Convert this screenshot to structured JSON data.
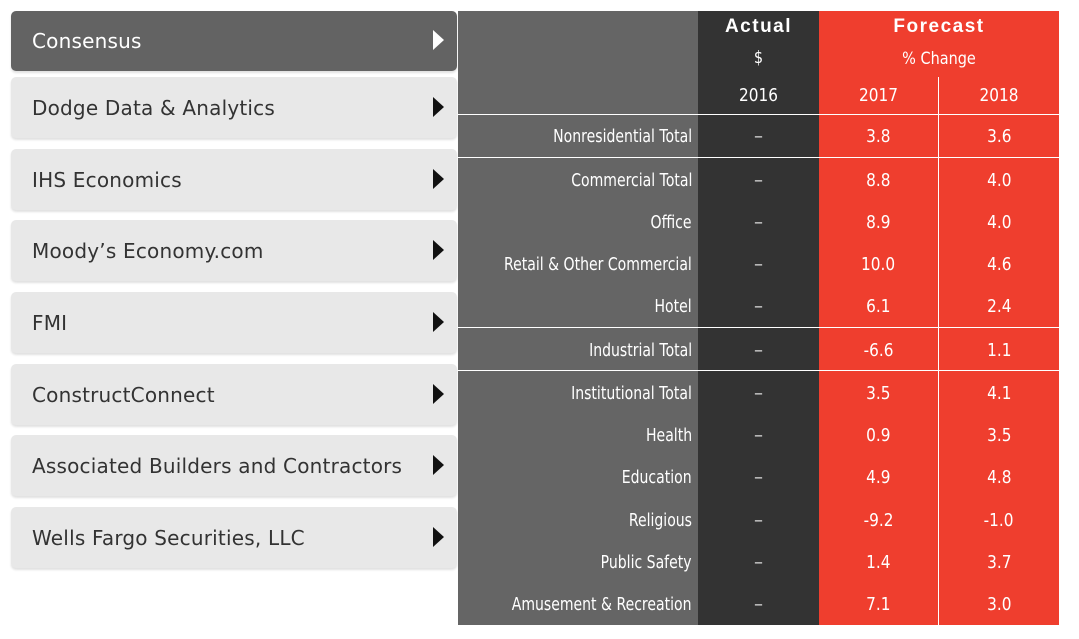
{
  "sidebar": {
    "items": [
      {
        "label": "Consensus",
        "active": true
      },
      {
        "label": "Dodge Data & Analytics",
        "active": false
      },
      {
        "label": "IHS Economics",
        "active": false
      },
      {
        "label": "Moody’s Economy.com",
        "active": false
      },
      {
        "label": "FMI",
        "active": false
      },
      {
        "label": "ConstructConnect",
        "active": false
      },
      {
        "label": "Associated Builders and Contractors",
        "active": false
      },
      {
        "label": "Wells Fargo Securities, LLC",
        "active": false
      }
    ]
  },
  "table": {
    "actual_title": "Actual",
    "actual_unit": "$",
    "actual_year": "2016",
    "forecast_title": "Forecast",
    "forecast_unit": "% Change",
    "forecast_years": [
      "2017",
      "2018"
    ],
    "rows": [
      {
        "label": "Nonresidential Total",
        "actual": "–",
        "y2017": "3.8",
        "y2018": "3.6"
      },
      {
        "label": "Commercial Total",
        "actual": "–",
        "y2017": "8.8",
        "y2018": "4.0"
      },
      {
        "label": "Office",
        "actual": "–",
        "y2017": "8.9",
        "y2018": "4.0"
      },
      {
        "label": "Retail & Other Commercial",
        "actual": "–",
        "y2017": "10.0",
        "y2018": "4.6"
      },
      {
        "label": "Hotel",
        "actual": "–",
        "y2017": "6.1",
        "y2018": "2.4"
      },
      {
        "label": "Industrial Total",
        "actual": "–",
        "y2017": "-6.6",
        "y2018": "1.1"
      },
      {
        "label": "Institutional Total",
        "actual": "–",
        "y2017": "3.5",
        "y2018": "4.1"
      },
      {
        "label": "Health",
        "actual": "–",
        "y2017": "0.9",
        "y2018": "3.5"
      },
      {
        "label": "Education",
        "actual": "–",
        "y2017": "4.9",
        "y2018": "4.8"
      },
      {
        "label": "Religious",
        "actual": "–",
        "y2017": "-9.2",
        "y2018": "-1.0"
      },
      {
        "label": "Public Safety",
        "actual": "–",
        "y2017": "1.4",
        "y2018": "3.7"
      },
      {
        "label": "Amusement & Recreation",
        "actual": "–",
        "y2017": "7.1",
        "y2018": "3.0"
      }
    ]
  },
  "colors": {
    "actual_column": "#333333",
    "forecast_column": "#ef3e2e",
    "label_column": "#656565",
    "tab_active": "#636363",
    "tab_inactive": "#e8e8e8"
  }
}
